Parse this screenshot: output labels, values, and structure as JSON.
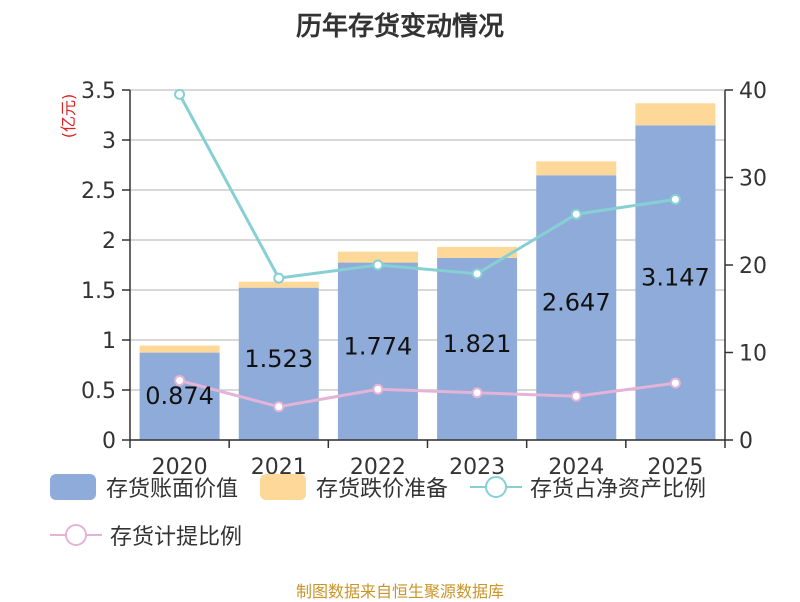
{
  "title": "历年存货变动情况",
  "source": "制图数据来自恒生聚源数据库",
  "chart_data": {
    "type": "bar",
    "categories": [
      "2020",
      "2021",
      "2022",
      "2023",
      "2024",
      "2025"
    ],
    "stacked": true,
    "series": [
      {
        "name": "存货账面价值",
        "kind": "bar",
        "axis": "left",
        "color": "#8eabd9",
        "values": [
          0.874,
          1.523,
          1.774,
          1.821,
          2.647,
          3.147
        ],
        "labels_shown": true
      },
      {
        "name": "存货跌价准备",
        "kind": "bar",
        "axis": "left",
        "color": "#fdd898",
        "values": [
          0.07,
          0.06,
          0.11,
          0.11,
          0.14,
          0.22
        ]
      },
      {
        "name": "存货占净资产比例",
        "kind": "line",
        "axis": "right",
        "color": "#86d0d4",
        "values": [
          39.5,
          18.5,
          20.0,
          19.0,
          25.8,
          27.5
        ]
      },
      {
        "name": "存货计提比例",
        "kind": "line",
        "axis": "right",
        "color": "#e3b4d8",
        "values": [
          6.8,
          3.8,
          5.8,
          5.4,
          5.0,
          6.5
        ]
      }
    ],
    "ylabel_left": "(亿元)",
    "ylim_left": [
      0,
      3.5
    ],
    "yticks_left": [
      "0",
      "0.5",
      "1",
      "1.5",
      "2",
      "2.5",
      "3",
      "3.5"
    ],
    "ylim_right": [
      0,
      40
    ],
    "yticks_right": [
      "0",
      "10",
      "20",
      "30",
      "40"
    ],
    "grid": true,
    "legend_position": "bottom"
  }
}
